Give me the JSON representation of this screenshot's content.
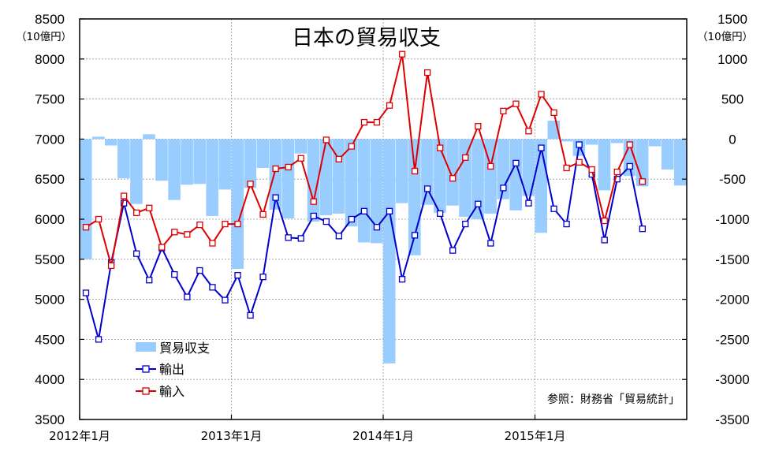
{
  "chart_data": {
    "type": "bar+line",
    "title": "日本の貿易収支",
    "left_axis": {
      "unit": "（10億円）",
      "ylim": [
        3500,
        8500
      ],
      "ticks": [
        "8500",
        "8000",
        "7500",
        "7000",
        "6500",
        "6000",
        "5500",
        "5000",
        "4500",
        "4000",
        "3500"
      ]
    },
    "right_axis": {
      "unit": "（10億円）",
      "ylim": [
        -3500,
        1500
      ],
      "ticks": [
        "1500",
        "1000",
        "500",
        "0",
        "-500",
        "-1000",
        "-1500",
        "-2000",
        "-2500",
        "-3000",
        "-3500"
      ]
    },
    "x_tick_labels": [
      "2012年1月",
      "2013年1月",
      "2014年1月",
      "2015年1月"
    ],
    "x": [
      "2012-01",
      "2012-02",
      "2012-03",
      "2012-04",
      "2012-05",
      "2012-06",
      "2012-07",
      "2012-08",
      "2012-09",
      "2012-10",
      "2012-11",
      "2012-12",
      "2013-01",
      "2013-02",
      "2013-03",
      "2013-04",
      "2013-05",
      "2013-06",
      "2013-07",
      "2013-08",
      "2013-09",
      "2013-10",
      "2013-11",
      "2013-12",
      "2014-01",
      "2014-02",
      "2014-03",
      "2014-04",
      "2014-05",
      "2014-06",
      "2014-07",
      "2014-08",
      "2014-09",
      "2014-10",
      "2014-11",
      "2014-12",
      "2015-01",
      "2015-02",
      "2015-03",
      "2015-04",
      "2015-05",
      "2015-06",
      "2015-07",
      "2015-08",
      "2015-09",
      "2015-10",
      "2015-11",
      "2015-12"
    ],
    "series": [
      {
        "name": "貿易収支",
        "type": "bar",
        "axis": "right",
        "color": "#99ccff",
        "values": [
          -1500,
          30,
          -80,
          -490,
          -810,
          60,
          -520,
          -760,
          -570,
          -560,
          -960,
          -630,
          -1620,
          -610,
          -360,
          -880,
          -990,
          -180,
          -1030,
          -950,
          -930,
          -1090,
          -1290,
          -1300,
          -2800,
          -800,
          -1450,
          -820,
          -920,
          -830,
          -970,
          -1000,
          -930,
          -750,
          -890,
          -710,
          -1170,
          230,
          -30,
          -210,
          -70,
          -640,
          -50,
          -460,
          -590,
          -90,
          -380,
          -580
        ]
      },
      {
        "name": "輸出",
        "type": "line",
        "axis": "left",
        "color": "#0000cc",
        "values": [
          5080,
          4500,
          5460,
          6200,
          5570,
          5240,
          5640,
          5310,
          5030,
          5360,
          5150,
          4990,
          5300,
          4800,
          5280,
          6270,
          5770,
          5760,
          6040,
          5970,
          5790,
          6000,
          6100,
          5900,
          6100,
          5250,
          5800,
          6380,
          6070,
          5610,
          5940,
          6190,
          5700,
          6390,
          6700,
          6200,
          6890,
          6130,
          5940,
          6930,
          6560,
          5740,
          6500,
          6660,
          5880,
          null,
          null,
          null
        ]
      },
      {
        "name": "輸入",
        "type": "line",
        "axis": "left",
        "color": "#dd0000",
        "values": [
          5900,
          6000,
          5420,
          6290,
          6080,
          6140,
          5650,
          5840,
          5810,
          5930,
          5700,
          5940,
          5940,
          6440,
          6060,
          6630,
          6650,
          6760,
          6220,
          6990,
          6750,
          6910,
          7210,
          7210,
          7420,
          8060,
          6600,
          7830,
          6890,
          6510,
          6770,
          7160,
          6660,
          7350,
          7440,
          7100,
          7560,
          7330,
          6640,
          6710,
          6620,
          5980,
          6590,
          6930,
          6470,
          null,
          null,
          null
        ]
      }
    ],
    "grid": true,
    "legend_position": "bottom-left",
    "annotation": "参照：財務省「貿易統計」"
  }
}
